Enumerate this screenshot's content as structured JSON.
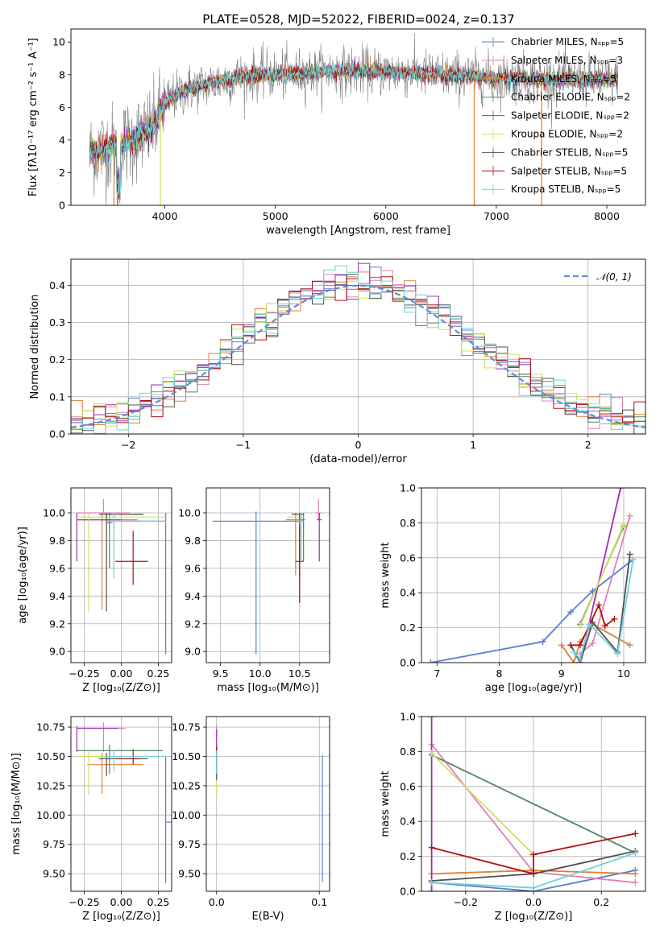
{
  "title": "PLATE=0528, MJD=52022, FIBERID=0024, z=0.137",
  "colors": {
    "chabrier_miles": "#5b7fd0",
    "salpeter_miles": "#e07fb8",
    "kroupa_miles": "#e08030",
    "chabrier_elodie": "#508860",
    "salpeter_elodie": "#9a30b0",
    "kroupa_elodie": "#d0e060",
    "chabrier_stelib": "#505050",
    "salpeter_stelib": "#b01010",
    "kroupa_stelib": "#70d0d8",
    "data": "#808080",
    "normal": "#5b8fd8",
    "grid": "#b0b0b0"
  },
  "chart_data": [
    {
      "id": "spectrum",
      "type": "line",
      "xlabel": "wavelength [Angstrom, rest frame]",
      "ylabel": "Flux [fλ10⁻¹⁷ erg cm⁻² s⁻¹ A⁻¹]",
      "xlim": [
        3150,
        8350
      ],
      "ylim": [
        0,
        10.8
      ],
      "xticks": [
        "4000",
        "5000",
        "6000",
        "7000",
        "8000"
      ],
      "yticks": [
        "0",
        "2",
        "4",
        "6",
        "8",
        "10"
      ],
      "legend_position": "top-right",
      "legend": [
        "Chabrier MILES, Nₛₚₚ=5",
        "Salpeter MILES, Nₛₚₚ=3",
        "Kroupa MILES, Nₛₚₚ=5",
        "Chabrier ELODIE, Nₛₚₚ=2",
        "Salpeter ELODIE, Nₛₚₚ=2",
        "Kroupa ELODIE, Nₛₚₚ=2",
        "Chabrier STELIB, Nₛₚₚ=5",
        "Salpeter STELIB, Nₛₚₚ=5",
        "Kroupa STELIB, Nₛₚₚ=5"
      ],
      "continuum": [
        [
          3320,
          3.2
        ],
        [
          3500,
          3.6
        ],
        [
          3700,
          3.9
        ],
        [
          3900,
          4.8
        ],
        [
          4000,
          6.3
        ],
        [
          4200,
          7.1
        ],
        [
          4500,
          7.6
        ],
        [
          4800,
          8.0
        ],
        [
          5000,
          8.0
        ],
        [
          5500,
          8.2
        ],
        [
          6000,
          8.2
        ],
        [
          6500,
          8.0
        ],
        [
          7000,
          7.8
        ],
        [
          7500,
          7.7
        ],
        [
          8100,
          7.7
        ]
      ]
    },
    {
      "id": "residuals",
      "type": "histogram",
      "xlabel": "(data-model)/error",
      "ylabel": "Normed distribution",
      "xlim": [
        -2.5,
        2.5
      ],
      "ylim": [
        0,
        0.47
      ],
      "xticks": [
        "−2",
        "−1",
        "0",
        "1",
        "2"
      ],
      "yticks": [
        "0.0",
        "0.1",
        "0.2",
        "0.3",
        "0.4"
      ],
      "legend_position": "top-right",
      "legend": [
        "𝒩(0, 1)"
      ],
      "normal_mean": 0,
      "normal_sigma": 1
    },
    {
      "id": "age_vs_Z",
      "type": "errorbar",
      "xlabel": "Z [log₁₀(Z/Z⊙)]",
      "ylabel": "age  [log₁₀(age/yr)]",
      "xlim": [
        -0.34,
        0.34
      ],
      "ylim": [
        8.92,
        10.18
      ],
      "xticks": [
        "−0.25",
        "0.00",
        "0.25"
      ],
      "yticks": [
        "9.0",
        "9.2",
        "9.4",
        "9.6",
        "9.8",
        "10.0"
      ],
      "points": [
        {
          "m": "chabrier_miles",
          "x": 0.3,
          "xerr": [
            0.3,
            0.0
          ],
          "y": 9.94,
          "yerr": [
            0.96,
            0.06
          ]
        },
        {
          "m": "salpeter_miles",
          "x": -0.12,
          "xerr": [
            0.18,
            0.18
          ],
          "y": 10.0,
          "yerr": [
            0.0,
            0.1
          ]
        },
        {
          "m": "kroupa_miles",
          "x": -0.13,
          "xerr": [
            0.17,
            0.24
          ],
          "y": 9.95,
          "yerr": [
            0.65,
            0.05
          ]
        },
        {
          "m": "chabrier_elodie",
          "x": -0.08,
          "xerr": [
            0.02,
            0.02
          ],
          "y": 9.93,
          "yerr": [
            0.33,
            0.07
          ]
        },
        {
          "m": "salpeter_elodie",
          "x": -0.3,
          "xerr": [
            0.0,
            0.3
          ],
          "y": 9.95,
          "yerr": [
            0.3,
            0.05
          ]
        },
        {
          "m": "kroupa_elodie",
          "x": -0.22,
          "xerr": [
            0.08,
            0.52
          ],
          "y": 9.97,
          "yerr": [
            0.68,
            0.03
          ]
        },
        {
          "m": "chabrier_stelib",
          "x": -0.1,
          "xerr": [
            0.05,
            0.25
          ],
          "y": 9.99,
          "yerr": [
            0.7,
            0.01
          ]
        },
        {
          "m": "salpeter_stelib",
          "x": 0.08,
          "xerr": [
            0.12,
            0.1
          ],
          "y": 9.65,
          "yerr": [
            0.17,
            0.22
          ]
        },
        {
          "m": "kroupa_stelib",
          "x": -0.05,
          "xerr": [
            0.06,
            0.35
          ],
          "y": 9.94,
          "yerr": [
            0.41,
            0.06
          ]
        }
      ]
    },
    {
      "id": "age_vs_mass",
      "type": "errorbar",
      "xlabel": "mass [log₁₀(M/M⊙)]",
      "ylabel": "",
      "xlim": [
        9.32,
        10.88
      ],
      "ylim": [
        8.92,
        10.18
      ],
      "xticks": [
        "9.5",
        "10.0",
        "10.5"
      ],
      "yticks": [
        "9.0",
        "9.2",
        "9.4",
        "9.6",
        "9.8",
        "10.0"
      ],
      "points": [
        {
          "m": "chabrier_miles",
          "x": 9.95,
          "xerr": [
            0.55,
            0.6
          ],
          "y": 9.94,
          "yerr": [
            0.96,
            0.07
          ]
        },
        {
          "m": "salpeter_miles",
          "x": 10.74,
          "xerr": [
            0.04,
            0.04
          ],
          "y": 10.0,
          "yerr": [
            0.05,
            0.1
          ]
        },
        {
          "m": "kroupa_miles",
          "x": 10.45,
          "xerr": [
            0.12,
            0.1
          ],
          "y": 9.95,
          "yerr": [
            0.4,
            0.05
          ]
        },
        {
          "m": "chabrier_elodie",
          "x": 10.55,
          "xerr": [
            0.02,
            0.02
          ],
          "y": 9.95,
          "yerr": [
            0.3,
            0.05
          ]
        },
        {
          "m": "salpeter_elodie",
          "x": 10.75,
          "xerr": [
            0.03,
            0.03
          ],
          "y": 9.95,
          "yerr": [
            0.3,
            0.05
          ]
        },
        {
          "m": "kroupa_elodie",
          "x": 10.5,
          "xerr": [
            0.15,
            0.05
          ],
          "y": 9.97,
          "yerr": [
            0.47,
            0.03
          ]
        },
        {
          "m": "chabrier_stelib",
          "x": 10.5,
          "xerr": [
            0.1,
            0.05
          ],
          "y": 9.99,
          "yerr": [
            0.45,
            0.01
          ]
        },
        {
          "m": "salpeter_stelib",
          "x": 10.5,
          "xerr": [
            0.05,
            0.05
          ],
          "y": 9.65,
          "yerr": [
            0.3,
            0.25
          ]
        },
        {
          "m": "kroupa_stelib",
          "x": 10.52,
          "xerr": [
            0.03,
            0.03
          ],
          "y": 9.94,
          "yerr": [
            0.3,
            0.06
          ]
        }
      ]
    },
    {
      "id": "weight_vs_age",
      "type": "line",
      "xlabel": "age  [log₁₀(age/yr)]",
      "ylabel": "mass weight",
      "xlim": [
        6.75,
        10.35
      ],
      "ylim": [
        0,
        1
      ],
      "xticks": [
        "7",
        "8",
        "9",
        "10"
      ],
      "yticks": [
        "0.0",
        "0.2",
        "0.4",
        "0.6",
        "0.8",
        "1.0"
      ],
      "series": [
        {
          "m": "chabrier_miles",
          "x": [
            6.9,
            8.7,
            9.15,
            9.5,
            10.15
          ],
          "y": [
            0.0,
            0.12,
            0.29,
            0.41,
            0.59
          ]
        },
        {
          "m": "salpeter_miles",
          "x": [
            9.3,
            9.5,
            10.1
          ],
          "y": [
            0.05,
            0.11,
            0.84
          ]
        },
        {
          "m": "kroupa_miles",
          "x": [
            9.0,
            9.2,
            9.3,
            9.5,
            10.1
          ],
          "y": [
            0.1,
            0.0,
            0.12,
            0.22,
            0.1
          ]
        },
        {
          "m": "chabrier_elodie",
          "x": [
            9.3,
            10.0
          ],
          "y": [
            0.22,
            0.78
          ]
        },
        {
          "m": "salpeter_elodie",
          "x": [
            9.3,
            9.95
          ],
          "y": [
            0.0,
            1.0
          ]
        },
        {
          "m": "kroupa_elodie",
          "x": [
            9.3,
            10.0
          ],
          "y": [
            0.21,
            0.79
          ]
        },
        {
          "m": "chabrier_stelib",
          "x": [
            9.15,
            9.3,
            9.5,
            9.9,
            10.1
          ],
          "y": [
            0.1,
            0.0,
            0.23,
            0.06,
            0.62
          ]
        },
        {
          "m": "salpeter_stelib",
          "x": [
            9.15,
            9.3,
            9.6,
            9.7,
            9.85
          ],
          "y": [
            0.1,
            0.1,
            0.33,
            0.21,
            0.25
          ]
        },
        {
          "m": "kroupa_stelib",
          "x": [
            9.2,
            9.3,
            9.45,
            9.9,
            10.15
          ],
          "y": [
            0.06,
            0.02,
            0.22,
            0.05,
            0.59
          ]
        }
      ]
    },
    {
      "id": "mass_vs_Z",
      "type": "errorbar",
      "xlabel": "Z [log₁₀(Z/Z⊙)]",
      "ylabel": "mass [log₁₀(M/M⊙)]",
      "xlim": [
        -0.34,
        0.34
      ],
      "ylim": [
        9.35,
        10.84
      ],
      "xticks": [
        "−0.25",
        "0.00",
        "0.25"
      ],
      "yticks": [
        "9.50",
        "9.75",
        "10.00",
        "10.25",
        "10.50",
        "10.75"
      ],
      "points": [
        {
          "m": "chabrier_miles",
          "x": 0.3,
          "xerr": [
            0.0,
            0.12
          ],
          "y": 9.94,
          "yerr": [
            0.52,
            0.56
          ]
        },
        {
          "m": "salpeter_miles",
          "x": -0.12,
          "xerr": [
            0.18,
            0.15
          ],
          "y": 10.74,
          "yerr": [
            0.2,
            0.05
          ]
        },
        {
          "m": "kroupa_miles",
          "x": -0.13,
          "xerr": [
            0.1,
            0.28
          ],
          "y": 10.43,
          "yerr": [
            0.25,
            0.1
          ]
        },
        {
          "m": "chabrier_elodie",
          "x": -0.08,
          "xerr": [
            0.22,
            0.36
          ],
          "y": 10.55,
          "yerr": [
            0.2,
            0.05
          ]
        },
        {
          "m": "salpeter_elodie",
          "x": -0.3,
          "xerr": [
            0.0,
            0.28
          ],
          "y": 10.74,
          "yerr": [
            0.2,
            0.02
          ]
        },
        {
          "m": "kroupa_elodie",
          "x": -0.22,
          "xerr": [
            0.08,
            0.52
          ],
          "y": 10.5,
          "yerr": [
            0.33,
            0.05
          ]
        },
        {
          "m": "chabrier_stelib",
          "x": -0.1,
          "xerr": [
            0.05,
            0.28
          ],
          "y": 10.48,
          "yerr": [
            0.15,
            0.05
          ]
        },
        {
          "m": "salpeter_stelib",
          "x": 0.08,
          "xerr": [
            0.12,
            0.05
          ],
          "y": 10.48,
          "yerr": [
            0.05,
            0.08
          ]
        },
        {
          "m": "kroupa_stelib",
          "x": -0.05,
          "xerr": [
            0.05,
            0.35
          ],
          "y": 10.5,
          "yerr": [
            0.13,
            0.05
          ]
        }
      ]
    },
    {
      "id": "mass_vs_ebv",
      "type": "errorbar",
      "xlabel": "E(B-V)",
      "ylabel": "",
      "xlim": [
        -0.01,
        0.11
      ],
      "ylim": [
        9.35,
        10.84
      ],
      "xticks": [
        "0.0",
        "0.1"
      ],
      "yticks": [
        "9.50",
        "9.75",
        "10.00",
        "10.25",
        "10.50",
        "10.75"
      ],
      "points": [
        {
          "m": "chabrier_miles",
          "x": 0.103,
          "xerr": [
            0.0,
            0.0
          ],
          "y": 9.95,
          "yerr": [
            0.52,
            0.56
          ]
        },
        {
          "m": "salpeter_miles",
          "x": 0.0,
          "xerr": [
            0.0,
            0.0
          ],
          "y": 10.72,
          "yerr": [
            0.05,
            0.05
          ]
        },
        {
          "m": "kroupa_miles",
          "x": 0.0,
          "xerr": [
            0.0,
            0.0
          ],
          "y": 10.5,
          "yerr": [
            0.1,
            0.1
          ]
        },
        {
          "m": "chabrier_elodie",
          "x": 0.0,
          "xerr": [
            0.0,
            0.0
          ],
          "y": 10.55,
          "yerr": [
            0.2,
            0.05
          ]
        },
        {
          "m": "salpeter_elodie",
          "x": 0.0,
          "xerr": [
            0.0,
            0.0
          ],
          "y": 10.7,
          "yerr": [
            0.2,
            0.03
          ]
        },
        {
          "m": "kroupa_elodie",
          "x": 0.0,
          "xerr": [
            0.0,
            0.0
          ],
          "y": 10.5,
          "yerr": [
            0.33,
            0.05
          ]
        },
        {
          "m": "chabrier_stelib",
          "x": 0.0,
          "xerr": [
            0.0,
            0.0
          ],
          "y": 10.45,
          "yerr": [
            0.15,
            0.05
          ]
        },
        {
          "m": "salpeter_stelib",
          "x": 0.0,
          "xerr": [
            0.0,
            0.0
          ],
          "y": 10.5,
          "yerr": [
            0.05,
            0.08
          ]
        },
        {
          "m": "kroupa_stelib",
          "x": 0.0,
          "xerr": [
            0.0,
            0.0
          ],
          "y": 10.5,
          "yerr": [
            0.15,
            0.05
          ]
        }
      ]
    },
    {
      "id": "weight_vs_Z",
      "type": "line",
      "xlabel": "Z [log₁₀(Z/Z⊙)]",
      "ylabel": "mass weight",
      "xlim": [
        -0.33,
        0.33
      ],
      "ylim": [
        0,
        1
      ],
      "xticks": [
        "−0.2",
        "0.0",
        "0.2"
      ],
      "yticks": [
        "0.0",
        "0.2",
        "0.4",
        "0.6",
        "0.8",
        "1.0"
      ],
      "series": [
        {
          "m": "chabrier_miles",
          "x": [
            -0.3,
            0.0,
            0.3
          ],
          "y": [
            0.05,
            0.0,
            0.12
          ]
        },
        {
          "m": "salpeter_miles",
          "x": [
            -0.3,
            0.0,
            0.3
          ],
          "y": [
            0.84,
            0.11,
            0.05
          ]
        },
        {
          "m": "kroupa_miles",
          "x": [
            -0.3,
            0.0,
            0.3
          ],
          "y": [
            0.1,
            0.12,
            0.1
          ]
        },
        {
          "m": "chabrier_elodie",
          "x": [
            -0.3,
            0.3
          ],
          "y": [
            0.78,
            0.22
          ]
        },
        {
          "m": "salpeter_elodie",
          "x": [
            -0.3,
            -0.3
          ],
          "y": [
            0.0,
            1.0
          ]
        },
        {
          "m": "kroupa_elodie",
          "x": [
            -0.3,
            0.0
          ],
          "y": [
            0.79,
            0.21
          ]
        },
        {
          "m": "chabrier_stelib",
          "x": [
            -0.3,
            0.0,
            0.3
          ],
          "y": [
            0.06,
            0.1,
            0.23
          ]
        },
        {
          "m": "salpeter_stelib",
          "x": [
            -0.3,
            0.0,
            0.0,
            0.3
          ],
          "y": [
            0.25,
            0.1,
            0.21,
            0.33
          ]
        },
        {
          "m": "kroupa_stelib",
          "x": [
            -0.3,
            0.0,
            0.3
          ],
          "y": [
            0.05,
            0.02,
            0.22
          ]
        }
      ]
    }
  ]
}
